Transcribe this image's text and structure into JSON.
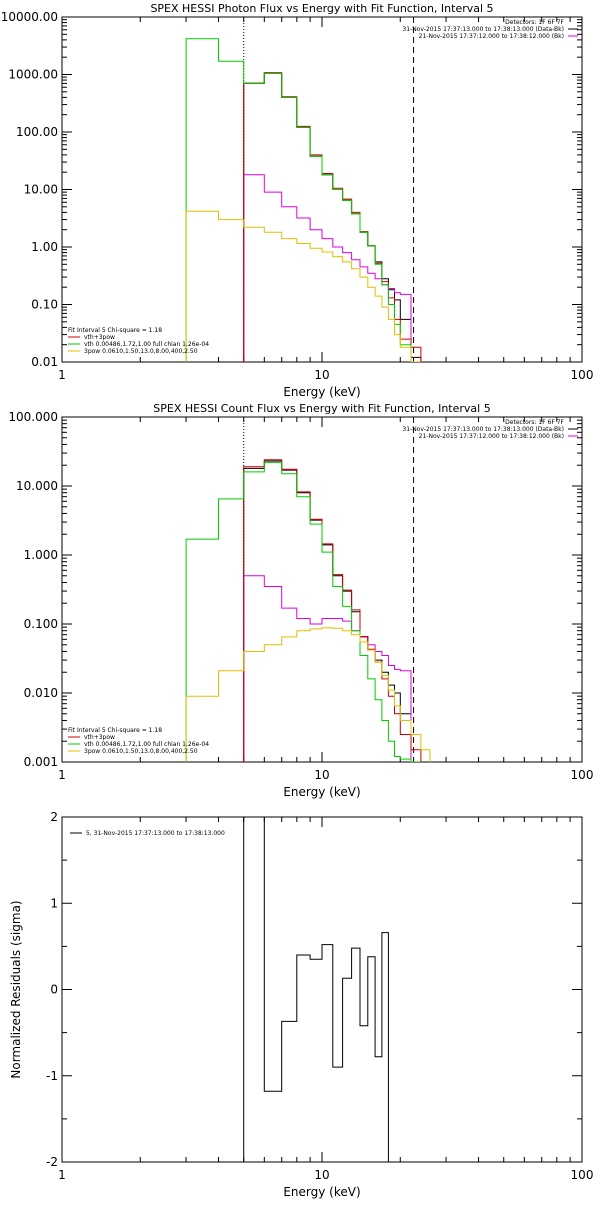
{
  "chart_data": [
    {
      "type": "line",
      "title": "SPEX HESSI Photon Flux vs Energy with Fit Function, Interval 5",
      "xlabel": "Energy (keV)",
      "ylabel": "",
      "x_scale": "log",
      "y_scale": "log",
      "xlim": [
        1,
        100
      ],
      "ylim": [
        0.01,
        10000
      ],
      "x_ticks": [
        "1",
        "10",
        "100"
      ],
      "y_ticks": [
        "10000.00",
        "1000.00",
        "100.00",
        "10.00",
        "1.00",
        "0.10",
        "0.01"
      ],
      "header_lines": [
        "Detectors: 1F 6F 7F",
        "31-Nov-2015 17:37:13.000 to 17:38:13.000 (Data-Bk)",
        "21-Nov-2015 17:37:12.000 to 17:38:12.000 (Bk)"
      ],
      "header_colors": [
        "",
        "#000000",
        "#e000e0"
      ],
      "fit_header": "Fit Interval 5   Chi-square = 1.18",
      "vlines": [
        {
          "x": 5,
          "style": "dotted"
        },
        {
          "x": 22.5,
          "style": "dashed"
        }
      ],
      "edges": [
        3,
        4,
        5,
        6,
        7,
        8,
        9,
        10,
        11,
        12,
        13,
        14,
        15,
        16,
        17,
        18,
        19,
        20,
        22,
        24
      ],
      "series": [
        {
          "name": "Data-Bk",
          "color": "#000000",
          "start": 5,
          "values": [
            700,
            1050,
            400,
            120,
            38,
            18,
            10,
            6.5,
            3.8,
            1.8,
            1.05,
            0.55,
            0.28,
            0.18,
            0.12,
            0.055,
            0.012
          ]
        },
        {
          "name": "Bk",
          "color": "#e000e0",
          "start": 5,
          "values": [
            18,
            9,
            5,
            3.2,
            2.0,
            1.4,
            1.0,
            0.8,
            0.6,
            0.45,
            0.35,
            0.28,
            0.22,
            0.19,
            0.16,
            0.15
          ]
        },
        {
          "name": "vth+3pow",
          "color": "#cc0000",
          "start": 5,
          "values": [
            710,
            1080,
            410,
            125,
            40,
            19,
            10.5,
            6.8,
            4.0,
            1.85,
            1.05,
            0.52,
            0.25,
            0.13,
            0.055,
            0.025,
            0.018
          ]
        },
        {
          "name": "vth 0.00486,1.72,1.00  full chian 1.26e-04",
          "color": "#00cc00",
          "start": 3,
          "values": [
            4200,
            1700,
            700,
            1050,
            400,
            120,
            38,
            18,
            10,
            6.5,
            3.8,
            1.8,
            1.05,
            0.5,
            0.22,
            0.1,
            0.045,
            0.02,
            0.01
          ]
        },
        {
          "name": "3pow 0.0610,1.50,13.0,8.00,400,2.50",
          "color": "#e0c000",
          "start": 3,
          "values": [
            4.2,
            3.0,
            2.2,
            1.8,
            1.4,
            1.15,
            0.95,
            0.82,
            0.68,
            0.55,
            0.42,
            0.3,
            0.2,
            0.14,
            0.09,
            0.055,
            0.03,
            0.018,
            0.01
          ]
        }
      ],
      "legend_colors": [
        "#cc0000",
        "#00cc00",
        "#e0c000"
      ]
    },
    {
      "type": "line",
      "title": "SPEX HESSI Count Flux vs Energy with Fit Function, Interval 5",
      "xlabel": "Energy (keV)",
      "ylabel": "",
      "x_scale": "log",
      "y_scale": "log",
      "xlim": [
        1,
        100
      ],
      "ylim": [
        0.001,
        100
      ],
      "x_ticks": [
        "1",
        "10",
        "100"
      ],
      "y_ticks": [
        "100.000",
        "10.000",
        "1.000",
        "0.100",
        "0.010",
        "0.001"
      ],
      "header_lines": [
        "Detectors: 1F 6F 7F",
        "31-Nov-2015 17:37:13.000 to 17:38:13.000 (Data-Bk)",
        "21-Nov-2015 17:37:12.000 to 17:38:12.000 (Bk)"
      ],
      "header_colors": [
        "",
        "#000000",
        "#e000e0"
      ],
      "fit_header": "Fit Interval 5   Chi-square = 1.18",
      "vlines": [
        {
          "x": 5,
          "style": "dotted"
        },
        {
          "x": 22.5,
          "style": "dashed"
        }
      ],
      "edges": [
        3,
        4,
        5,
        6,
        7,
        8,
        9,
        10,
        11,
        12,
        13,
        14,
        15,
        16,
        17,
        18,
        19,
        20,
        22,
        24,
        26
      ],
      "series": [
        {
          "name": "Data-Bk",
          "color": "#000000",
          "start": 5,
          "values": [
            18,
            23,
            17,
            8,
            3.2,
            1.4,
            0.5,
            0.3,
            0.15,
            0.065,
            0.042,
            0.03,
            0.02,
            0.013,
            0.01,
            0.005
          ]
        },
        {
          "name": "Bk",
          "color": "#e000e0",
          "start": 5,
          "values": [
            0.5,
            0.35,
            0.17,
            0.12,
            0.1,
            0.12,
            0.12,
            0.11,
            0.08,
            0.065,
            0.05,
            0.04,
            0.035,
            0.025,
            0.022,
            0.021
          ]
        },
        {
          "name": "vth+3pow",
          "color": "#cc0000",
          "start": 5,
          "values": [
            19,
            24,
            17.5,
            8.2,
            3.3,
            1.45,
            0.52,
            0.31,
            0.16,
            0.066,
            0.043,
            0.028,
            0.016,
            0.009,
            0.005,
            0.0025,
            0.0015
          ]
        },
        {
          "name": "vth 0.00486,1.72,1.00  full chian 1.26e-04",
          "color": "#00cc00",
          "start": 3,
          "values": [
            1.7,
            6.5,
            16,
            22,
            15,
            7,
            2.8,
            1.1,
            0.35,
            0.18,
            0.08,
            0.035,
            0.016,
            0.008,
            0.004,
            0.002,
            0.0012,
            0.0011,
            0.001
          ]
        },
        {
          "name": "3pow 0.0610,1.50,13.0,8.00,400,2.50",
          "color": "#e0c000",
          "start": 3,
          "values": [
            0.009,
            0.021,
            0.04,
            0.05,
            0.065,
            0.08,
            0.085,
            0.088,
            0.087,
            0.08,
            0.07,
            0.055,
            0.042,
            0.028,
            0.018,
            0.011,
            0.0065,
            0.004,
            0.0025,
            0.0015
          ]
        }
      ],
      "legend_colors": [
        "#cc0000",
        "#00cc00",
        "#e0c000"
      ]
    },
    {
      "type": "line",
      "title": "",
      "xlabel": "Energy (keV)",
      "ylabel": "Normalized Residuals (sigma)",
      "x_scale": "log",
      "y_scale": "linear",
      "xlim": [
        1,
        100
      ],
      "ylim": [
        -2,
        2
      ],
      "x_ticks": [
        "1",
        "10",
        "100"
      ],
      "y_ticks": [
        "2",
        "1",
        "0",
        "-1",
        "-2"
      ],
      "legend_line": "5, 31-Nov-2015 17:37:13.000 to 17:38:13.000",
      "edges": [
        5,
        6,
        7,
        8,
        9,
        10,
        11,
        12,
        13,
        14,
        15,
        16,
        17,
        18,
        19,
        20,
        22
      ],
      "series": [
        {
          "name": "5, 31-Nov-2015 17:37:13.000 to 17:38:13.000",
          "color": "#000000",
          "start": 5,
          "values": [
            2.0,
            -1.18,
            -0.37,
            0.4,
            0.35,
            0.52,
            -0.9,
            0.13,
            0.48,
            -0.42,
            0.38,
            -0.78,
            0.66
          ]
        }
      ]
    }
  ]
}
